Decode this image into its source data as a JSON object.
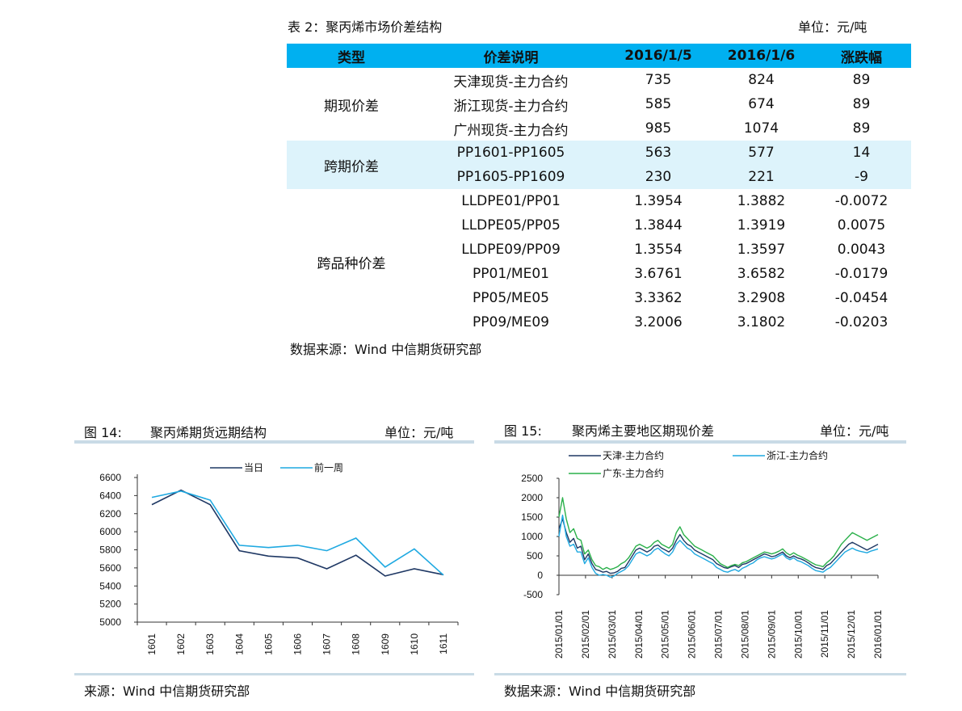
{
  "table": {
    "caption": "表 2：聚丙烯市场价差结构",
    "unit": "单位：元/吨",
    "headers": [
      "类型",
      "价差说明",
      "2016/1/5",
      "2016/1/6",
      "涨跌幅"
    ],
    "groups": [
      {
        "type": "期现价差",
        "rows": [
          {
            "desc": "天津现货-主力合约",
            "v1": "735",
            "v2": "824",
            "chg": "89"
          },
          {
            "desc": "浙江现货-主力合约",
            "v1": "585",
            "v2": "674",
            "chg": "89"
          },
          {
            "desc": "广州现货-主力合约",
            "v1": "985",
            "v2": "1074",
            "chg": "89"
          }
        ]
      },
      {
        "type": "跨期价差",
        "rows": [
          {
            "desc": "PP1601-PP1605",
            "v1": "563",
            "v2": "577",
            "chg": "14"
          },
          {
            "desc": "PP1605-PP1609",
            "v1": "230",
            "v2": "221",
            "chg": "-9"
          }
        ]
      },
      {
        "type": "跨品种价差",
        "rows": [
          {
            "desc": "LLDPE01/PP01",
            "v1": "1.3954",
            "v2": "1.3882",
            "chg": "-0.0072"
          },
          {
            "desc": "LLDPE05/PP05",
            "v1": "1.3844",
            "v2": "1.3919",
            "chg": "0.0075"
          },
          {
            "desc": "LLDPE09/PP09",
            "v1": "1.3554",
            "v2": "1.3597",
            "chg": "0.0043"
          },
          {
            "desc": "PP01/ME01",
            "v1": "3.6761",
            "v2": "3.6582",
            "chg": "-0.0179"
          },
          {
            "desc": "PP05/ME05",
            "v1": "3.3362",
            "v2": "3.2908",
            "chg": "-0.0454"
          },
          {
            "desc": "PP09/ME09",
            "v1": "3.2006",
            "v2": "3.1802",
            "chg": "-0.0203"
          }
        ]
      }
    ],
    "source": "数据来源：Wind  中信期货研究部"
  },
  "fig14": {
    "label": "图 14:",
    "title": "聚丙烯期货远期结构",
    "unit": "单位：元/吨",
    "source": "来源：Wind  中信期货研究部"
  },
  "fig15": {
    "label": "图 15:",
    "title": "聚丙烯主要地区期现价差",
    "unit": "单位：元/吨",
    "source": "数据来源：Wind  中信期货研究部"
  },
  "chart_data": [
    {
      "type": "line",
      "categories": [
        "1601",
        "1602",
        "1603",
        "1604",
        "1605",
        "1606",
        "1607",
        "1608",
        "1609",
        "1610",
        "1611"
      ],
      "series": [
        {
          "name": "当日",
          "color": "#1f3864",
          "values": [
            6300,
            6460,
            6300,
            5790,
            5730,
            5710,
            5590,
            5740,
            5510,
            5590,
            5525
          ]
        },
        {
          "name": "前一周",
          "color": "#1fa9e1",
          "values": [
            6380,
            6450,
            6350,
            5850,
            5825,
            5850,
            5790,
            5930,
            5610,
            5810,
            5520
          ]
        }
      ],
      "yticks": [
        5000,
        5200,
        5400,
        5600,
        5800,
        6000,
        6200,
        6400,
        6600
      ],
      "ylim": [
        5000,
        6600
      ],
      "legend": "top"
    },
    {
      "type": "line",
      "x_ticks": [
        "2015/01/01",
        "2015/02/01",
        "2015/03/01",
        "2015/04/01",
        "2015/05/01",
        "2015/06/01",
        "2015/07/01",
        "2015/08/01",
        "2015/09/01",
        "2015/10/01",
        "2015/11/01",
        "2015/12/01",
        "2016/01/01"
      ],
      "series": [
        {
          "name": "天津-主力合约",
          "color": "#1f3864",
          "values": [
            1200,
            1450,
            1100,
            850,
            950,
            700,
            750,
            400,
            550,
            300,
            150,
            120,
            80,
            100,
            50,
            60,
            100,
            180,
            200,
            350,
            500,
            650,
            700,
            650,
            600,
            650,
            750,
            780,
            700,
            650,
            600,
            700,
            900,
            1050,
            900,
            800,
            750,
            650,
            600,
            550,
            500,
            450,
            400,
            300,
            250,
            200,
            180,
            220,
            250,
            200,
            280,
            300,
            350,
            400,
            450,
            500,
            550,
            520,
            480,
            500,
            550,
            600,
            500,
            450,
            500,
            450,
            420,
            380,
            320,
            250,
            200,
            180,
            150,
            250,
            300,
            400,
            500,
            600,
            700,
            800,
            850,
            800,
            750,
            700,
            650,
            700,
            750,
            800
          ]
        },
        {
          "name": "浙江-主力合约",
          "color": "#1fa9e1",
          "values": [
            1000,
            1550,
            1000,
            750,
            800,
            600,
            600,
            300,
            450,
            200,
            50,
            0,
            20,
            0,
            -50,
            -20,
            50,
            100,
            150,
            250,
            400,
            550,
            600,
            550,
            500,
            550,
            650,
            700,
            620,
            550,
            500,
            600,
            800,
            900,
            800,
            700,
            650,
            550,
            500,
            450,
            400,
            350,
            300,
            200,
            150,
            100,
            80,
            120,
            150,
            100,
            180,
            220,
            280,
            320,
            400,
            450,
            480,
            450,
            420,
            450,
            500,
            550,
            450,
            400,
            450,
            380,
            350,
            300,
            250,
            180,
            120,
            100,
            80,
            150,
            200,
            300,
            400,
            500,
            600,
            650,
            700,
            650,
            620,
            600,
            580,
            620,
            650,
            680
          ]
        },
        {
          "name": "广东-主力合约",
          "color": "#2ab04a",
          "values": [
            1500,
            2000,
            1450,
            1100,
            1200,
            950,
            900,
            550,
            650,
            400,
            250,
            220,
            150,
            200,
            150,
            180,
            220,
            300,
            350,
            450,
            600,
            750,
            800,
            750,
            700,
            750,
            850,
            900,
            800,
            750,
            700,
            800,
            1100,
            1250,
            1050,
            950,
            850,
            750,
            700,
            650,
            600,
            550,
            500,
            400,
            300,
            250,
            200,
            250,
            280,
            250,
            320,
            350,
            400,
            450,
            500,
            550,
            600,
            580,
            550,
            580,
            620,
            680,
            580,
            520,
            580,
            520,
            480,
            430,
            380,
            320,
            270,
            250,
            220,
            320,
            400,
            500,
            650,
            800,
            900,
            1000,
            1100,
            1050,
            1000,
            950,
            900,
            950,
            1000,
            1050
          ]
        }
      ],
      "yticks": [
        -500,
        0,
        500,
        1000,
        1500,
        2000,
        2500
      ],
      "ylim": [
        -500,
        2500
      ],
      "legend": "top"
    }
  ]
}
